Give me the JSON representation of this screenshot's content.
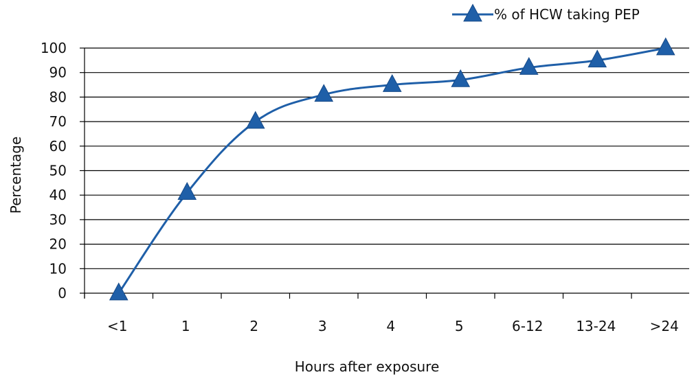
{
  "colors": {
    "series": "#1f5fa8",
    "series_stroke": "#164a88",
    "grid": "#000000",
    "axis": "#000000",
    "text": "#111111",
    "background": "#ffffff"
  },
  "chart_data": {
    "type": "line",
    "title": "",
    "xlabel": "Hours after exposure",
    "ylabel": "Percentage",
    "categories": [
      "<1",
      "1",
      "2",
      "3",
      "4",
      "5",
      "6-12",
      "13-24",
      ">24"
    ],
    "series": [
      {
        "name": "% of HCW taking PEP",
        "marker": "triangle",
        "values": [
          0,
          41,
          70,
          81,
          85,
          87,
          92,
          95,
          100
        ]
      }
    ],
    "ylim": [
      0,
      100
    ],
    "yticks": [
      0,
      10,
      20,
      30,
      40,
      50,
      60,
      70,
      80,
      90,
      100
    ],
    "grid": "horizontal",
    "legend_position": "top-right"
  }
}
